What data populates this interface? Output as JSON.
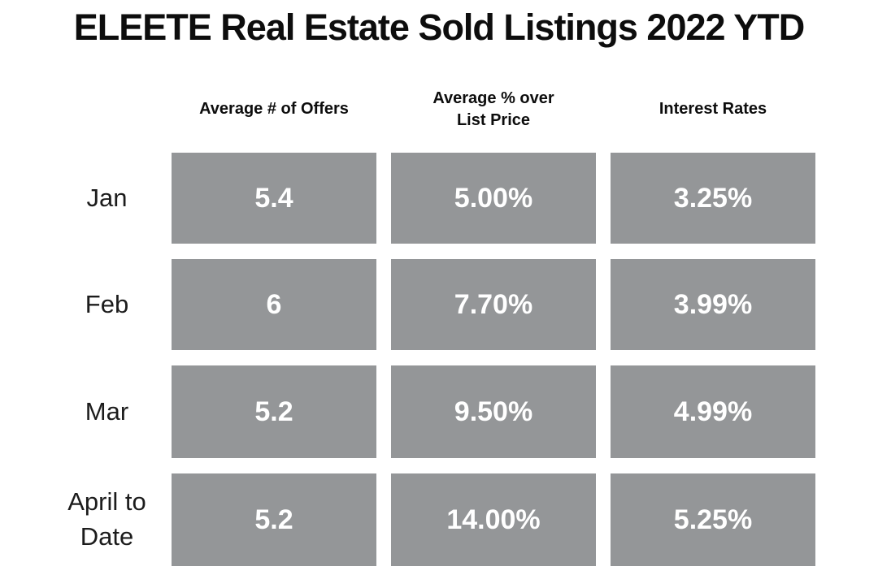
{
  "title": "ELEETE Real Estate Sold Listings 2022 YTD",
  "colors": {
    "box_fill": "#949698",
    "cell_text": "#ffffff",
    "title_text": "#0d0d0d",
    "label_text": "#1c1c1c",
    "background": "#ffffff"
  },
  "table": {
    "columns": [
      "Average # of Offers",
      "Average % over List Price",
      "Interest Rates"
    ],
    "rows": [
      {
        "label": "Jan",
        "values": [
          "5.4",
          "5.00%",
          "3.25%"
        ]
      },
      {
        "label": "Feb",
        "values": [
          "6",
          "7.70%",
          "3.99%"
        ]
      },
      {
        "label": "Mar",
        "values": [
          "5.2",
          "9.50%",
          "4.99%"
        ]
      },
      {
        "label": "April to Date",
        "values": [
          "5.2",
          "14.00%",
          "5.25%"
        ]
      }
    ]
  },
  "chart_data": {
    "type": "table",
    "title": "ELEETE Real Estate Sold Listings 2022 YTD",
    "categories": [
      "Jan",
      "Feb",
      "Mar",
      "April to Date"
    ],
    "series": [
      {
        "name": "Average # of Offers",
        "values": [
          5.4,
          6,
          5.2,
          5.2
        ]
      },
      {
        "name": "Average % over List Price",
        "values": [
          "5.00%",
          "7.70%",
          "9.50%",
          "14.00%"
        ]
      },
      {
        "name": "Interest Rates",
        "values": [
          "3.25%",
          "3.99%",
          "4.99%",
          "5.25%"
        ]
      }
    ],
    "layout": {
      "grid": false,
      "legend": false,
      "value_boxes": "gray filled rectangles with white bold values"
    }
  }
}
